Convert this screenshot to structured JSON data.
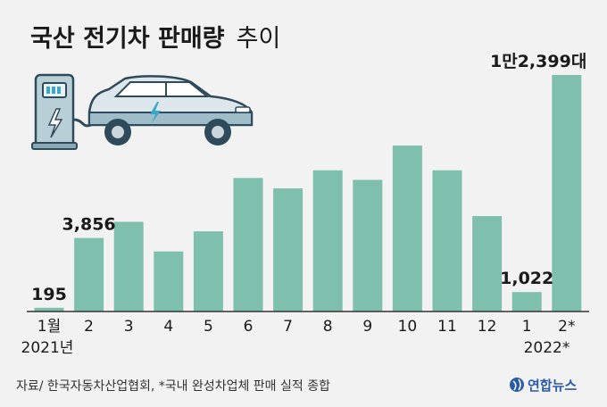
{
  "title": {
    "bold": "국산 전기차 판매량",
    "light": "추이"
  },
  "source": "자료/ 한국자동차산업협회, *국내 완성차업체 판매 실적 종합",
  "logo": {
    "text": "연합뉴스",
    "icon": "yonhap-logo-icon"
  },
  "illustration": {
    "icons": [
      "ev-charger-icon",
      "electric-car-icon"
    ]
  },
  "colors": {
    "bar": "#7fbfae",
    "axis": "#333333",
    "logo": "#2a5aa8"
  },
  "chart_data": {
    "type": "bar",
    "categories": [
      "1월",
      "2",
      "3",
      "4",
      "5",
      "6",
      "7",
      "8",
      "9",
      "10",
      "11",
      "12",
      "1",
      "2*"
    ],
    "year_labels": [
      "2021년",
      "2022*"
    ],
    "values": [
      195,
      3856,
      4700,
      3150,
      4200,
      7000,
      6450,
      7400,
      6900,
      8700,
      7400,
      5000,
      1022,
      12399
    ],
    "data_labels": {
      "0": "195",
      "1": "3,856",
      "12": "1,022",
      "13": "1만2,399대"
    },
    "ylim": [
      0,
      12399
    ],
    "grid": false,
    "legend": "none"
  }
}
